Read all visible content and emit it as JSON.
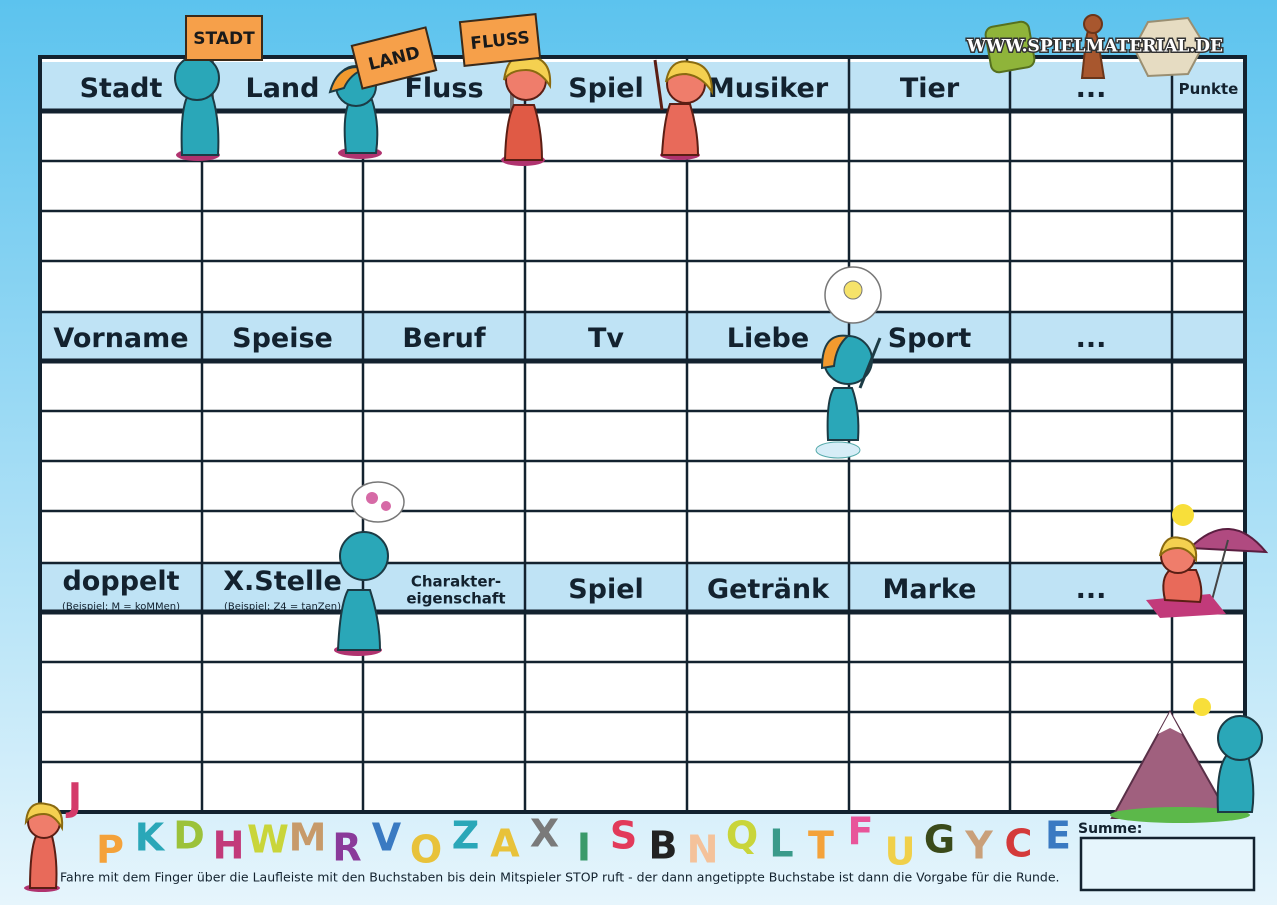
{
  "logo": "WWW.SPIELMATERIAL.DE",
  "signs": [
    "STADT",
    "LAND",
    "FLUSS"
  ],
  "sections": [
    {
      "columns": [
        {
          "title": "Stadt"
        },
        {
          "title": "Land"
        },
        {
          "title": "Fluss"
        },
        {
          "title": "Spiel"
        },
        {
          "title": "Musiker"
        },
        {
          "title": "Tier"
        },
        {
          "title": "..."
        },
        {
          "title": "Punkte"
        }
      ]
    },
    {
      "columns": [
        {
          "title": "Vorname"
        },
        {
          "title": "Speise"
        },
        {
          "title": "Beruf"
        },
        {
          "title": "Tv"
        },
        {
          "title": "Liebe"
        },
        {
          "title": "Sport"
        },
        {
          "title": "..."
        }
      ]
    },
    {
      "columns": [
        {
          "title": "doppelt",
          "note": "(Beispiel: M = koMMen)"
        },
        {
          "title": "X.Stelle",
          "note": "(Beispiel: Z4 = tanZen)"
        },
        {
          "title_lines": [
            "Charakter-",
            "eigenschaft"
          ]
        },
        {
          "title": "Spiel"
        },
        {
          "title": "Getränk"
        },
        {
          "title": "Marke"
        },
        {
          "title": "..."
        }
      ]
    }
  ],
  "start_letter": "J",
  "letters": [
    "P",
    "K",
    "D",
    "H",
    "W",
    "M",
    "R",
    "V",
    "O",
    "Z",
    "A",
    "X",
    "I",
    "S",
    "B",
    "N",
    "Q",
    "L",
    "T",
    "F",
    "U",
    "G",
    "Y",
    "C",
    "E"
  ],
  "sum_label": "Summe:",
  "footer": "Fahre mit dem Finger über die Laufleiste mit den Buchstaben bis dein Mitspieler STOP ruft - der dann angetippte Buchstabe ist dann die Vorgabe für die Runde."
}
